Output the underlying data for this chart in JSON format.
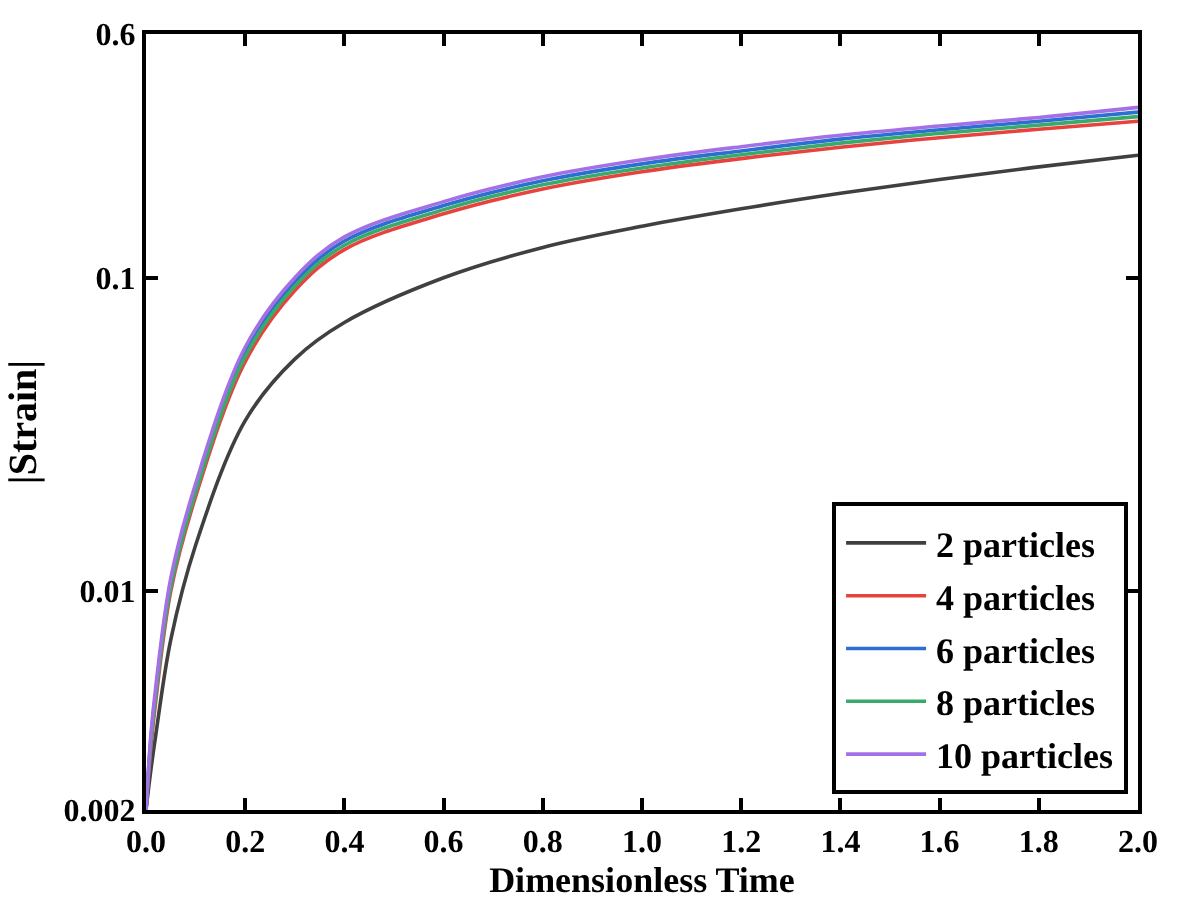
{
  "chart_data": {
    "type": "line",
    "xlabel": "Dimensionless Time",
    "ylabel": "|Strain|",
    "x": [
      0,
      0.01,
      0.02,
      0.05,
      0.1,
      0.2,
      0.3,
      0.4,
      0.6,
      0.8,
      1.0,
      1.2,
      1.4,
      1.6,
      1.8,
      2.0
    ],
    "series": [
      {
        "name": "2 particles",
        "color": "#404040",
        "values": [
          0.002,
          0.0027,
          0.0035,
          0.007,
          0.014,
          0.035,
          0.055,
          0.072,
          0.1,
          0.125,
          0.146,
          0.166,
          0.186,
          0.206,
          0.226,
          0.246
        ]
      },
      {
        "name": "4 particles",
        "color": "#e8423f",
        "values": [
          0.002,
          0.0032,
          0.0045,
          0.01,
          0.02,
          0.054,
          0.091,
          0.123,
          0.16,
          0.192,
          0.218,
          0.24,
          0.261,
          0.28,
          0.298,
          0.316
        ]
      },
      {
        "name": "6 particles",
        "color": "#2a6fd1",
        "values": [
          0.002,
          0.0034,
          0.0048,
          0.0107,
          0.0213,
          0.058,
          0.097,
          0.131,
          0.17,
          0.204,
          0.231,
          0.254,
          0.277,
          0.297,
          0.316,
          0.338
        ]
      },
      {
        "name": "8 particles",
        "color": "#3aaa6a",
        "values": [
          0.002,
          0.0033,
          0.0047,
          0.0103,
          0.0206,
          0.056,
          0.094,
          0.127,
          0.165,
          0.198,
          0.224,
          0.247,
          0.269,
          0.289,
          0.307,
          0.327
        ]
      },
      {
        "name": "10 particles",
        "color": "#a370e6",
        "values": [
          0.002,
          0.0035,
          0.005,
          0.011,
          0.022,
          0.06,
          0.1,
          0.135,
          0.175,
          0.21,
          0.238,
          0.262,
          0.285,
          0.305,
          0.325,
          0.35
        ]
      }
    ],
    "xlim": [
      0,
      2.0
    ],
    "xticks": [
      {
        "value": 0,
        "label": "0.0"
      },
      0.2,
      0.4,
      0.6,
      0.8,
      {
        "value": 1,
        "label": "1.0"
      },
      1.2,
      1.4,
      1.6,
      1.8,
      {
        "value": 2,
        "label": "2.0"
      }
    ],
    "ylim": [
      0.002,
      0.6
    ],
    "yticks": [
      0.002,
      0.01,
      0.1,
      0.6
    ],
    "log": "y",
    "legend": "bottom right",
    "line_style": "solid",
    "marker": "none"
  }
}
